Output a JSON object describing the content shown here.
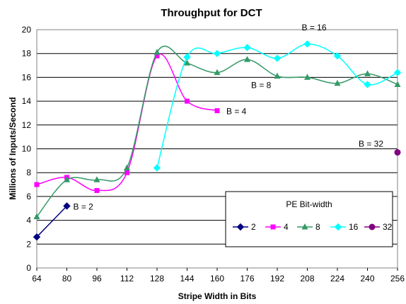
{
  "chart_data": {
    "type": "line",
    "title": "Throughput for DCT",
    "xlabel": "Stripe Width in Bits",
    "ylabel": "Millions of Inputs/Second",
    "xlim": [
      64,
      256
    ],
    "ylim": [
      0,
      20
    ],
    "xticks": [
      "64",
      "80",
      "96",
      "112",
      "128",
      "144",
      "160",
      "176",
      "192",
      "208",
      "224",
      "240",
      "256"
    ],
    "yticks": [
      "0",
      "2",
      "4",
      "6",
      "8",
      "10",
      "12",
      "14",
      "16",
      "18",
      "20"
    ],
    "grid": "horizontal",
    "legend": {
      "title": "PE Bit-width",
      "placement": "lower-right"
    },
    "series": [
      {
        "name": "2",
        "color": "#000080",
        "marker": "diamond",
        "x": [
          64,
          80
        ],
        "y": [
          2.6,
          5.2
        ]
      },
      {
        "name": "4",
        "color": "#ff00ff",
        "marker": "square",
        "x": [
          64,
          80,
          96,
          112,
          128,
          144,
          160
        ],
        "y": [
          7.0,
          7.6,
          6.5,
          8.0,
          17.8,
          14.0,
          13.2
        ]
      },
      {
        "name": "8",
        "color": "#339966",
        "marker": "triangle",
        "x": [
          64,
          80,
          96,
          112,
          128,
          144,
          160,
          176,
          192,
          208,
          224,
          240,
          256
        ],
        "y": [
          4.3,
          7.4,
          7.4,
          8.4,
          18.1,
          17.2,
          16.4,
          17.5,
          16.1,
          16.0,
          15.5,
          16.3,
          15.4
        ]
      },
      {
        "name": "16",
        "color": "#00ffff",
        "marker": "diamond",
        "x": [
          128,
          144,
          160,
          176,
          192,
          208,
          224,
          240,
          256
        ],
        "y": [
          8.4,
          17.7,
          18.0,
          18.5,
          17.6,
          18.8,
          17.8,
          15.4,
          16.4
        ]
      },
      {
        "name": "32",
        "color": "#800080",
        "marker": "circle",
        "x": [
          256
        ],
        "y": [
          9.7
        ]
      }
    ],
    "annotations": [
      {
        "text": "B = 2",
        "x": 80,
        "y": 5.2
      },
      {
        "text": "B = 4",
        "x": 160,
        "y": 13.2
      },
      {
        "text": "B = 8",
        "x": 192,
        "y": 16.1
      },
      {
        "text": "B = 16",
        "x": 208,
        "y": 18.8
      },
      {
        "text": "B = 32",
        "x": 256,
        "y": 9.7
      }
    ]
  }
}
